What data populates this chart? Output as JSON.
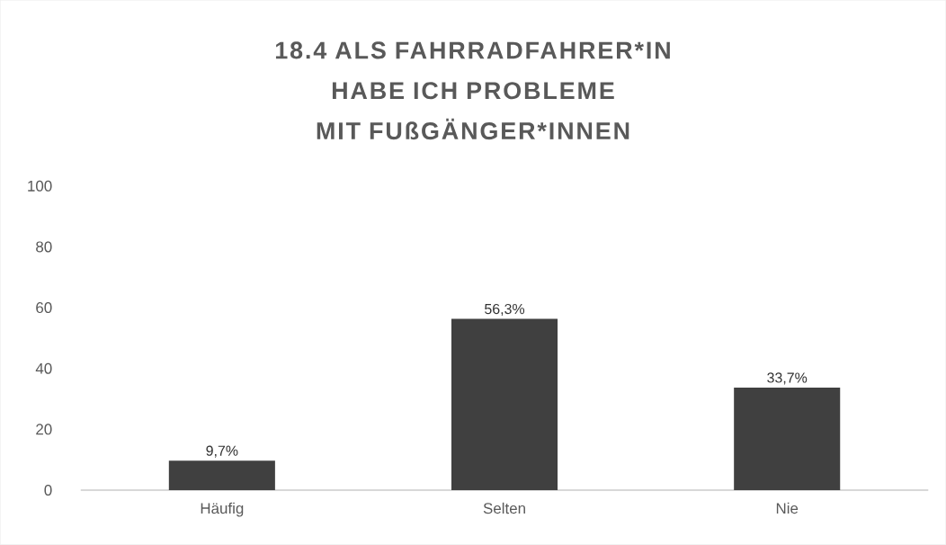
{
  "chart_data": {
    "type": "bar",
    "title": "18.4 ALS FAHRRADFAHRER*IN HABE ICH PROBLEME MIT FUßGÄNGER*INNEN",
    "categories": [
      "Häufig",
      "Selten",
      "Nie"
    ],
    "values": [
      9.7,
      56.3,
      33.7
    ],
    "value_labels": [
      "9,7%",
      "56,3%",
      "33,7%"
    ],
    "color": "#404040",
    "ylim": [
      0,
      100
    ],
    "yticks": [
      0,
      20,
      40,
      60,
      80,
      100
    ]
  }
}
